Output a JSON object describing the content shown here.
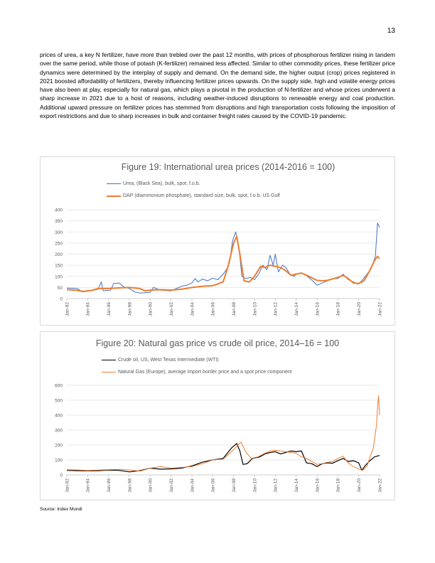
{
  "page": {
    "number": "13",
    "paragraph": "prices of urea, a key N fertilizer, have more than trebled over the past 12 months, with prices of phosphorous fertilizer rising in tandem over the same period, while those of potash (K-fertilizer) remained less affected. Similar to other commodity prices, these fertilizer price dynamics were determined by the interplay of supply and demand. On the demand side, the higher output (crop) prices registered in 2021 boosted affordability of fertilizers, thereby influencing fertilizer prices upwards. On the supply side, high and volatile energy prices have also been at play, especially for natural gas, which plays a pivotal in the production of N-fertilizer and whose prices underwent a sharp increase in 2021 due to a host of reasons, including weather-induced disruptions to renewable energy and coal production. Additional upward pressure on fertilizer prices has stemmed from disruptions and high transportation costs following the imposition of export restrictions and due to sharp increases in bulk and container freight rates caused by the COVID-19 pandemic.",
    "source": "Source: Index Mundi"
  },
  "chart_data": [
    {
      "type": "line",
      "title": "Figure 19: International urea prices (2014-2016 = 100)",
      "xlabel": "",
      "ylabel": "",
      "ylim": [
        0,
        400
      ],
      "yticks": [
        "0",
        "50",
        "100",
        "150",
        "200",
        "250",
        "300",
        "350",
        "400"
      ],
      "xticks": [
        "Jan-92",
        "Jan-94",
        "Jan-96",
        "Jan-98",
        "Jan-00",
        "Jan-02",
        "Jan-04",
        "Jan-06",
        "Jan-08",
        "Jan-10",
        "Jan-12",
        "Jan-14",
        "Jan-16",
        "Jan-18",
        "Jan-20",
        "Jan-22"
      ],
      "xrange": [
        1992,
        2022
      ],
      "grid": true,
      "legend_position": "top",
      "series": [
        {
          "name": "Urea, (Black Sea), bulk, spot, f.o.b.",
          "color": "#4472c4",
          "width": 1,
          "points": [
            [
              1992,
              47
            ],
            [
              1993,
              45
            ],
            [
              1993.5,
              30
            ],
            [
              1994.3,
              35
            ],
            [
              1995,
              42
            ],
            [
              1995.3,
              75
            ],
            [
              1995.5,
              35
            ],
            [
              1996.2,
              38
            ],
            [
              1996.5,
              68
            ],
            [
              1997,
              70
            ],
            [
              1997.5,
              52
            ],
            [
              1998,
              45
            ],
            [
              1998.5,
              30
            ],
            [
              1999,
              25
            ],
            [
              2000,
              28
            ],
            [
              2000.3,
              50
            ],
            [
              2001,
              38
            ],
            [
              2002,
              35
            ],
            [
              2002.5,
              45
            ],
            [
              2003,
              55
            ],
            [
              2003.5,
              60
            ],
            [
              2004,
              70
            ],
            [
              2004.3,
              90
            ],
            [
              2004.6,
              75
            ],
            [
              2005,
              88
            ],
            [
              2005.5,
              80
            ],
            [
              2006,
              92
            ],
            [
              2006.5,
              85
            ],
            [
              2007,
              110
            ],
            [
              2007.3,
              130
            ],
            [
              2007.6,
              160
            ],
            [
              2007.9,
              260
            ],
            [
              2008.2,
              300
            ],
            [
              2008.5,
              230
            ],
            [
              2008.8,
              100
            ],
            [
              2009.2,
              90
            ],
            [
              2009.6,
              95
            ],
            [
              2010,
              85
            ],
            [
              2010.4,
              110
            ],
            [
              2010.8,
              150
            ],
            [
              2011.2,
              130
            ],
            [
              2011.5,
              195
            ],
            [
              2011.8,
              150
            ],
            [
              2012,
              200
            ],
            [
              2012.3,
              120
            ],
            [
              2012.7,
              150
            ],
            [
              2013,
              140
            ],
            [
              2013.4,
              110
            ],
            [
              2013.8,
              100
            ],
            [
              2014,
              110
            ],
            [
              2014.4,
              115
            ],
            [
              2014.8,
              110
            ],
            [
              2015.2,
              95
            ],
            [
              2015.7,
              75
            ],
            [
              2016,
              60
            ],
            [
              2016.5,
              70
            ],
            [
              2017,
              80
            ],
            [
              2017.5,
              90
            ],
            [
              2018,
              90
            ],
            [
              2018.5,
              110
            ],
            [
              2019,
              85
            ],
            [
              2019.5,
              75
            ],
            [
              2019.9,
              65
            ],
            [
              2020.3,
              80
            ],
            [
              2020.8,
              110
            ],
            [
              2021.2,
              135
            ],
            [
              2021.6,
              190
            ],
            [
              2021.8,
              340
            ],
            [
              2022,
              320
            ]
          ]
        },
        {
          "name": "DAP (diammonium phosphate), standard size, bulk, spot, f.o.b. US Gulf",
          "color": "#ed7d31",
          "width": 2,
          "points": [
            [
              1992,
              40
            ],
            [
              1993,
              37
            ],
            [
              1993.5,
              32
            ],
            [
              1994.3,
              36
            ],
            [
              1995,
              45
            ],
            [
              1996,
              45
            ],
            [
              1997,
              48
            ],
            [
              1998,
              50
            ],
            [
              1999,
              45
            ],
            [
              1999.5,
              35
            ],
            [
              2000,
              38
            ],
            [
              2001,
              40
            ],
            [
              2002,
              38
            ],
            [
              2003,
              42
            ],
            [
              2004,
              50
            ],
            [
              2005,
              55
            ],
            [
              2006,
              58
            ],
            [
              2007,
              75
            ],
            [
              2007.5,
              150
            ],
            [
              2008,
              250
            ],
            [
              2008.3,
              280
            ],
            [
              2008.6,
              200
            ],
            [
              2009,
              80
            ],
            [
              2009.5,
              75
            ],
            [
              2010,
              100
            ],
            [
              2010.6,
              145
            ],
            [
              2011,
              140
            ],
            [
              2011.5,
              150
            ],
            [
              2012,
              145
            ],
            [
              2012.5,
              140
            ],
            [
              2013,
              125
            ],
            [
              2013.5,
              105
            ],
            [
              2014,
              110
            ],
            [
              2014.5,
              115
            ],
            [
              2015,
              105
            ],
            [
              2016,
              82
            ],
            [
              2016.5,
              80
            ],
            [
              2017,
              82
            ],
            [
              2018,
              95
            ],
            [
              2018.5,
              105
            ],
            [
              2019,
              90
            ],
            [
              2019.5,
              70
            ],
            [
              2020,
              68
            ],
            [
              2020.5,
              80
            ],
            [
              2021,
              120
            ],
            [
              2021.5,
              170
            ],
            [
              2021.8,
              190
            ],
            [
              2022,
              180
            ]
          ]
        }
      ]
    },
    {
      "type": "line",
      "title": "Figure 20: Natural gas price vs crude oil price, 2014–16 = 100",
      "xlabel": "",
      "ylabel": "",
      "ylim": [
        0,
        600
      ],
      "yticks": [
        "0",
        "100",
        "200",
        "300",
        "400",
        "500",
        "600"
      ],
      "xticks": [
        "Jan-92",
        "Jan-94",
        "Jan-96",
        "Jan-98",
        "Jan-00",
        "Jan-02",
        "Jan-04",
        "Jan-06",
        "Jan-08",
        "Jan-10",
        "Jan-12",
        "Jan-14",
        "Jan-16",
        "Jan-18",
        "Jan-20",
        "Jan-22"
      ],
      "xrange": [
        1992,
        2022
      ],
      "grid": true,
      "legend_position": "top",
      "series": [
        {
          "name": "Crude oil, US, West Texas Intermediate (WTI)",
          "color": "#000000",
          "width": 1.2,
          "points": [
            [
              1992,
              30
            ],
            [
              1993,
              28
            ],
            [
              1994,
              27
            ],
            [
              1995,
              28
            ],
            [
              1996,
              32
            ],
            [
              1997,
              30
            ],
            [
              1998,
              20
            ],
            [
              1999,
              28
            ],
            [
              2000,
              45
            ],
            [
              2001,
              38
            ],
            [
              2002,
              40
            ],
            [
              2003,
              45
            ],
            [
              2004,
              60
            ],
            [
              2005,
              85
            ],
            [
              2006,
              100
            ],
            [
              2007,
              110
            ],
            [
              2007.8,
              180
            ],
            [
              2008.3,
              210
            ],
            [
              2008.6,
              160
            ],
            [
              2008.9,
              70
            ],
            [
              2009.3,
              75
            ],
            [
              2009.8,
              110
            ],
            [
              2010.5,
              120
            ],
            [
              2011,
              140
            ],
            [
              2011.5,
              150
            ],
            [
              2012,
              155
            ],
            [
              2012.5,
              140
            ],
            [
              2013,
              150
            ],
            [
              2013.5,
              160
            ],
            [
              2014,
              155
            ],
            [
              2014.5,
              160
            ],
            [
              2015,
              80
            ],
            [
              2015.5,
              75
            ],
            [
              2016,
              55
            ],
            [
              2016.5,
              75
            ],
            [
              2017,
              80
            ],
            [
              2017.5,
              78
            ],
            [
              2018,
              95
            ],
            [
              2018.5,
              110
            ],
            [
              2019,
              90
            ],
            [
              2019.5,
              95
            ],
            [
              2020,
              80
            ],
            [
              2020.3,
              30
            ],
            [
              2020.6,
              60
            ],
            [
              2021,
              90
            ],
            [
              2021.5,
              120
            ],
            [
              2022,
              130
            ]
          ]
        },
        {
          "name": "Natural Gas (Europe), average import border price and a spot price component",
          "color": "#ed7d31",
          "width": 1,
          "points": [
            [
              1992,
              35
            ],
            [
              1993,
              33
            ],
            [
              1994,
              30
            ],
            [
              1995,
              32
            ],
            [
              1996,
              35
            ],
            [
              1997,
              37
            ],
            [
              1998,
              33
            ],
            [
              1999,
              25
            ],
            [
              2000,
              45
            ],
            [
              2001,
              55
            ],
            [
              2002,
              45
            ],
            [
              2003,
              50
            ],
            [
              2004,
              55
            ],
            [
              2005,
              75
            ],
            [
              2006,
              100
            ],
            [
              2007,
              105
            ],
            [
              2008,
              170
            ],
            [
              2008.7,
              220
            ],
            [
              2009.2,
              150
            ],
            [
              2009.7,
              110
            ],
            [
              2010.3,
              120
            ],
            [
              2011,
              145
            ],
            [
              2011.5,
              160
            ],
            [
              2012,
              165
            ],
            [
              2012.5,
              160
            ],
            [
              2013,
              155
            ],
            [
              2013.5,
              150
            ],
            [
              2014,
              145
            ],
            [
              2014.5,
              120
            ],
            [
              2015,
              110
            ],
            [
              2015.5,
              90
            ],
            [
              2016,
              70
            ],
            [
              2016.5,
              75
            ],
            [
              2017,
              85
            ],
            [
              2017.5,
              90
            ],
            [
              2018,
              110
            ],
            [
              2018.5,
              125
            ],
            [
              2019,
              80
            ],
            [
              2019.5,
              55
            ],
            [
              2020,
              40
            ],
            [
              2020.4,
              30
            ],
            [
              2020.8,
              60
            ],
            [
              2021,
              100
            ],
            [
              2021.4,
              180
            ],
            [
              2021.7,
              330
            ],
            [
              2021.8,
              450
            ],
            [
              2021.9,
              530
            ],
            [
              2022,
              400
            ]
          ]
        }
      ]
    }
  ]
}
